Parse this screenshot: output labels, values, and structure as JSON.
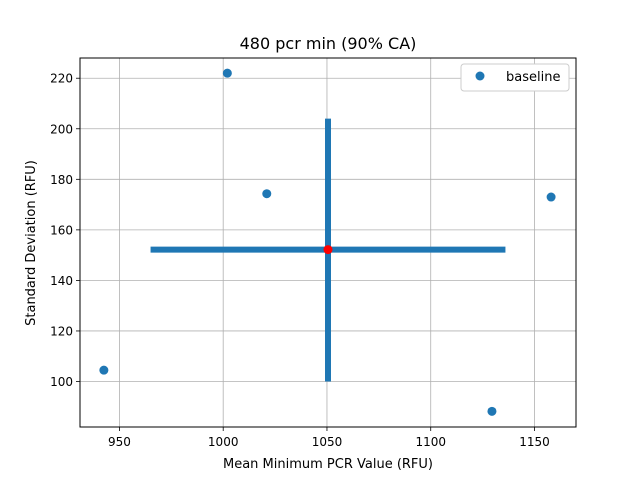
{
  "chart_data": {
    "type": "scatter",
    "title": "480 pcr min (90% CA)",
    "xlabel": "Mean Minimum PCR Value (RFU)",
    "ylabel": "Standard Deviation (RFU)",
    "xlim": [
      931,
      1170
    ],
    "ylim": [
      82,
      228
    ],
    "xticks": [
      950,
      1000,
      1050,
      1100,
      1150
    ],
    "yticks": [
      100,
      120,
      140,
      160,
      180,
      200,
      220
    ],
    "grid": true,
    "legend_position": "upper-right",
    "series": [
      {
        "name": "baseline",
        "color": "#1f77b4",
        "points": [
          {
            "x": 942.5,
            "y": 104.5
          },
          {
            "x": 1002,
            "y": 222
          },
          {
            "x": 1021,
            "y": 174.3
          },
          {
            "x": 1129.5,
            "y": 88.2
          },
          {
            "x": 1158,
            "y": 173
          }
        ]
      }
    ],
    "center": {
      "x": 1050.5,
      "y": 152.2,
      "color": "#ff0000"
    },
    "confidence_interval": {
      "x_range": [
        965,
        1136
      ],
      "y_range": [
        100,
        204
      ],
      "color": "#1f77b4"
    }
  }
}
